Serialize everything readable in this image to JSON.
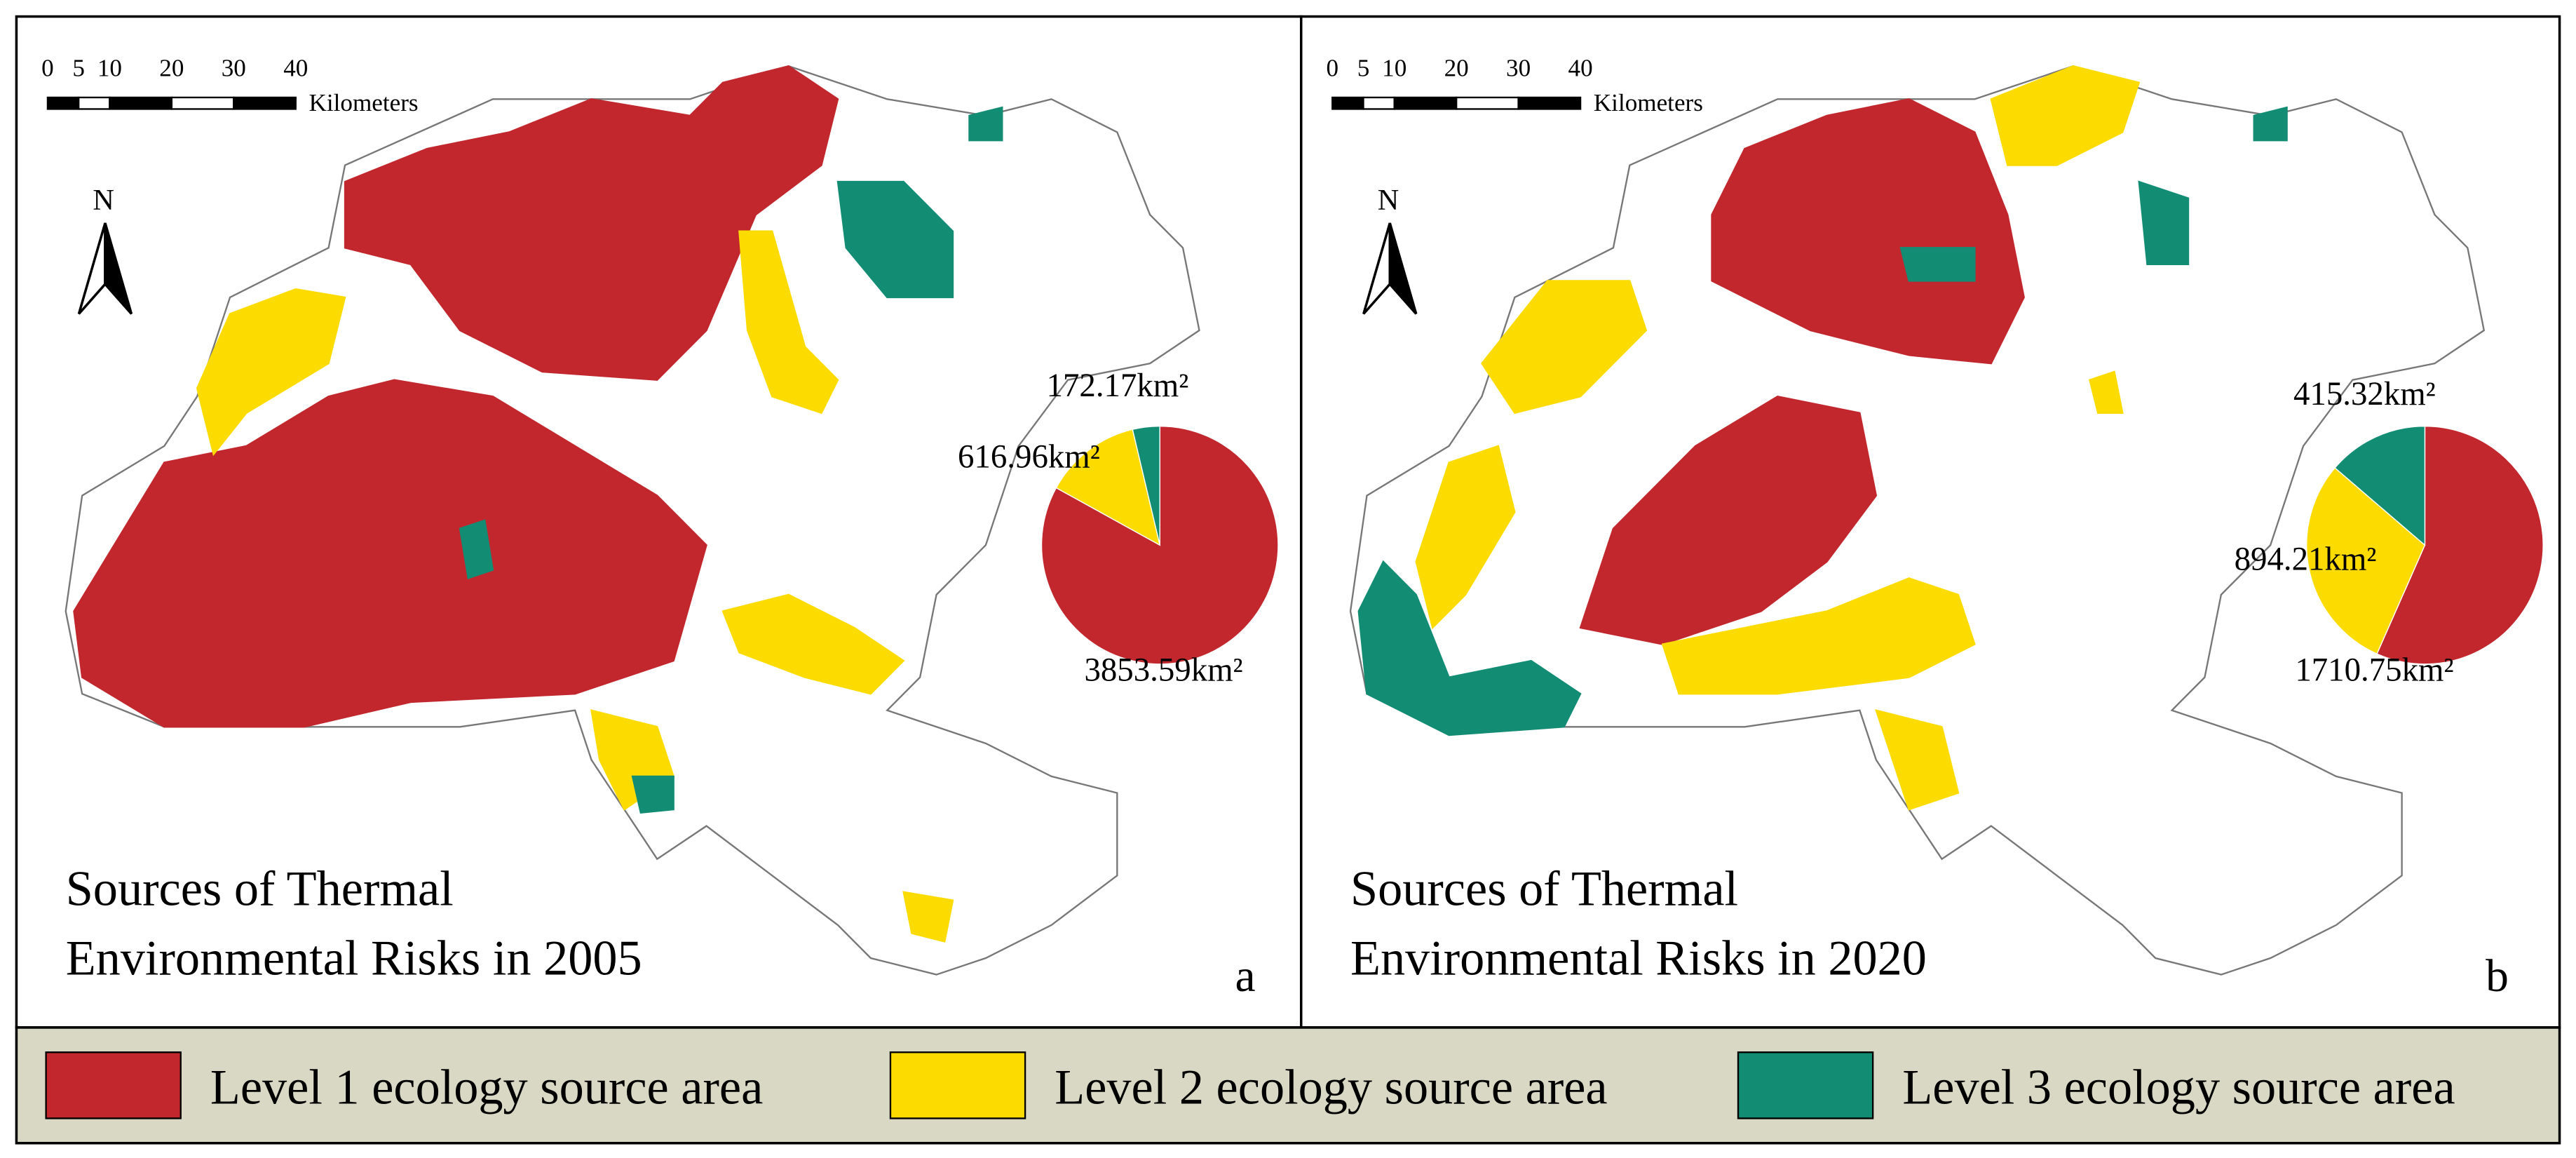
{
  "panels": [
    {
      "title_lines": [
        "Sources of Thermal",
        "Environmental Risks in 2005"
      ],
      "letter": "a",
      "north": "N",
      "scale_ticks": [
        0,
        5,
        10,
        20,
        30,
        40
      ],
      "scale_unit": "Kilometers",
      "pie": {
        "values": [
          3853.59,
          616.96,
          172.17
        ],
        "value_labels": [
          "3853.59km²",
          "616.96km²",
          "172.17km²"
        ],
        "colors": [
          "#c1272d",
          "#fcdc00",
          "#138c74"
        ]
      }
    },
    {
      "title_lines": [
        "Sources of Thermal",
        "Environmental Risks in 2020"
      ],
      "letter": "b",
      "north": "N",
      "scale_ticks": [
        0,
        5,
        10,
        20,
        30,
        40
      ],
      "scale_unit": "Kilometers",
      "pie": {
        "values": [
          1710.75,
          894.21,
          415.32
        ],
        "value_labels": [
          "1710.75km²",
          "894.21km²",
          "415.32km²"
        ],
        "colors": [
          "#c1272d",
          "#fcdc00",
          "#138c74"
        ]
      }
    }
  ],
  "legend": {
    "items": [
      {
        "label": "Level 1 ecology source area",
        "color": "#c1272d"
      },
      {
        "label": "Level 2 ecology source area",
        "color": "#fcdc00"
      },
      {
        "label": "Level 3 ecology source area",
        "color": "#138c74"
      }
    ]
  }
}
